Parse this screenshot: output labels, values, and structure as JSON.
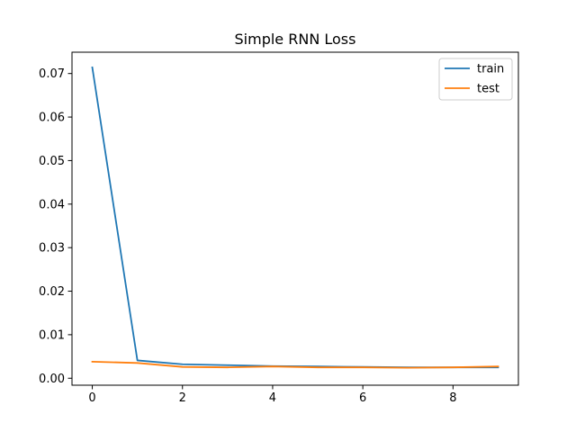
{
  "chart_data": {
    "type": "line",
    "title": "Simple RNN Loss",
    "xlabel": "",
    "ylabel": "",
    "x": [
      0,
      1,
      2,
      3,
      4,
      5,
      6,
      7,
      8,
      9
    ],
    "xlim": [
      -0.45,
      9.45
    ],
    "ylim": [
      -0.0016,
      0.0749
    ],
    "xticks": [
      0,
      2,
      4,
      6,
      8
    ],
    "yticks": [
      0.0,
      0.01,
      0.02,
      0.03,
      0.04,
      0.05,
      0.06,
      0.07
    ],
    "ytick_labels": [
      "0.00",
      "0.01",
      "0.02",
      "0.03",
      "0.04",
      "0.05",
      "0.06",
      "0.07"
    ],
    "grid": false,
    "legend_position": "top-right",
    "series": [
      {
        "name": "train",
        "color": "#1f77b4",
        "values": [
          0.0714,
          0.0041,
          0.0032,
          0.003,
          0.0028,
          0.0027,
          0.0026,
          0.0025,
          0.0025,
          0.0025
        ]
      },
      {
        "name": "test",
        "color": "#ff7f0e",
        "values": [
          0.0038,
          0.0035,
          0.0026,
          0.0025,
          0.0027,
          0.0025,
          0.0025,
          0.0024,
          0.0025,
          0.0027
        ]
      }
    ]
  }
}
